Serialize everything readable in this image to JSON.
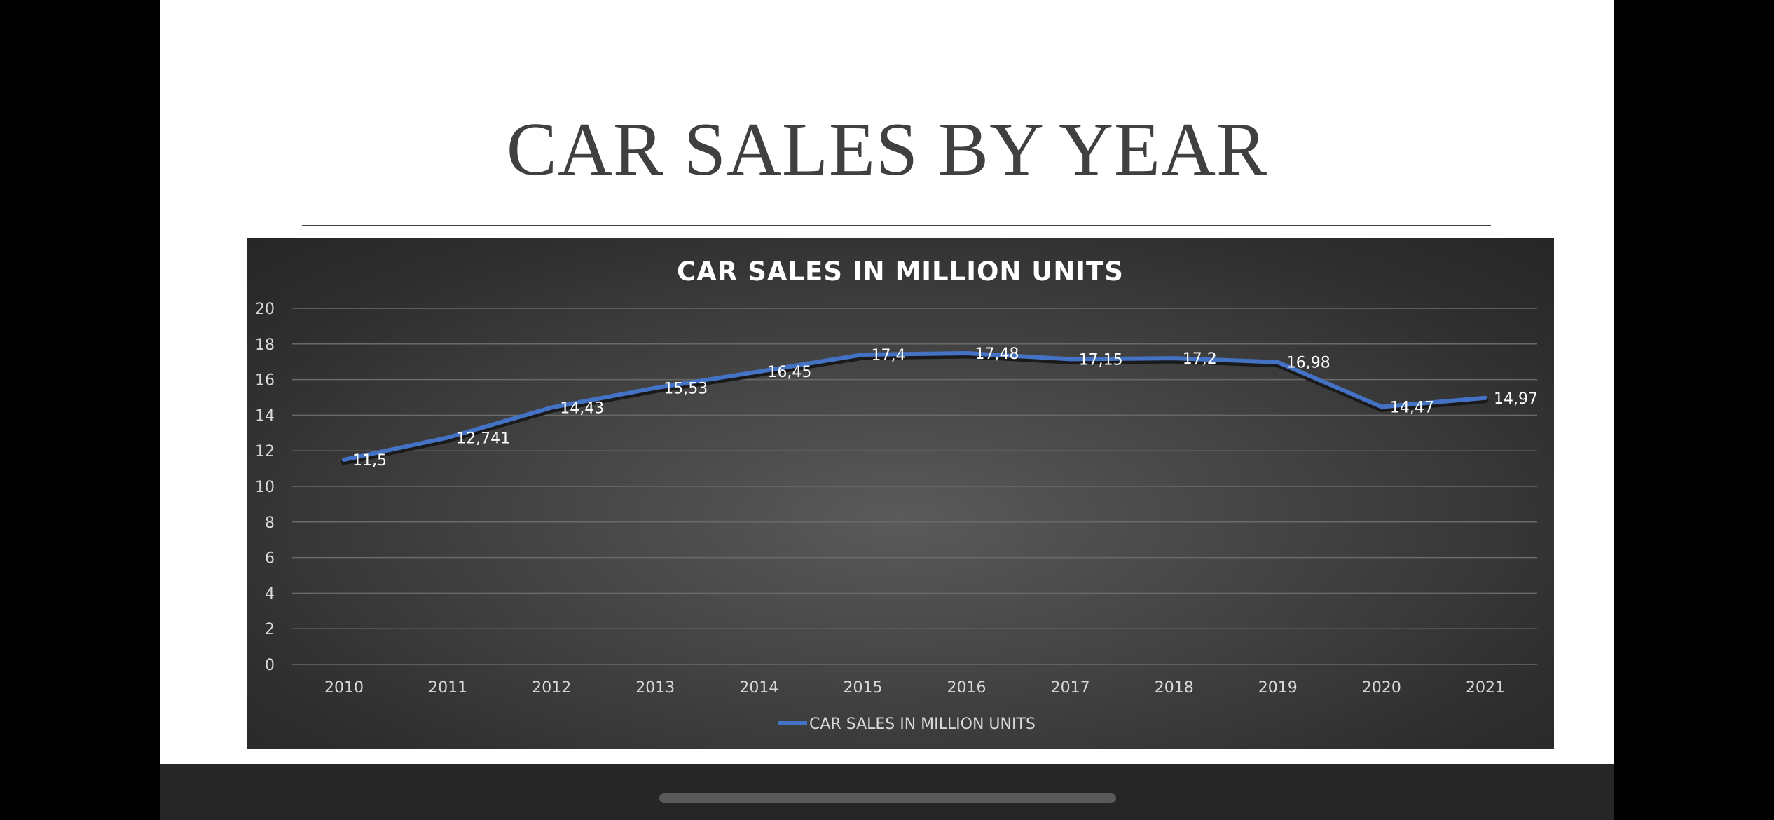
{
  "slide": {
    "title": "CAR SALES BY YEAR"
  },
  "chart_data": {
    "type": "line",
    "title": "CAR SALES IN MILLION UNITS",
    "categories": [
      "2010",
      "2011",
      "2012",
      "2013",
      "2014",
      "2015",
      "2016",
      "2017",
      "2018",
      "2019",
      "2020",
      "2021"
    ],
    "series": [
      {
        "name": "CAR SALES IN MILLION UNITS",
        "values": [
          11.5,
          12.741,
          14.43,
          15.53,
          16.45,
          17.4,
          17.48,
          17.15,
          17.2,
          16.98,
          14.47,
          14.97
        ],
        "labels": [
          "11,5",
          "12,741",
          "14,43",
          "15,53",
          "16,45",
          "17,4",
          "17,48",
          "17,15",
          "17,2",
          "16,98",
          "14,47",
          "14,97"
        ],
        "color": "#4472c4"
      }
    ],
    "ylim": [
      0,
      20
    ],
    "yticks": [
      "0",
      "2",
      "4",
      "6",
      "8",
      "10",
      "12",
      "14",
      "16",
      "18",
      "20"
    ],
    "grid": true,
    "legend_position": "bottom"
  },
  "colors": {
    "line": "#4472c4",
    "background": "#3a3a3a"
  }
}
